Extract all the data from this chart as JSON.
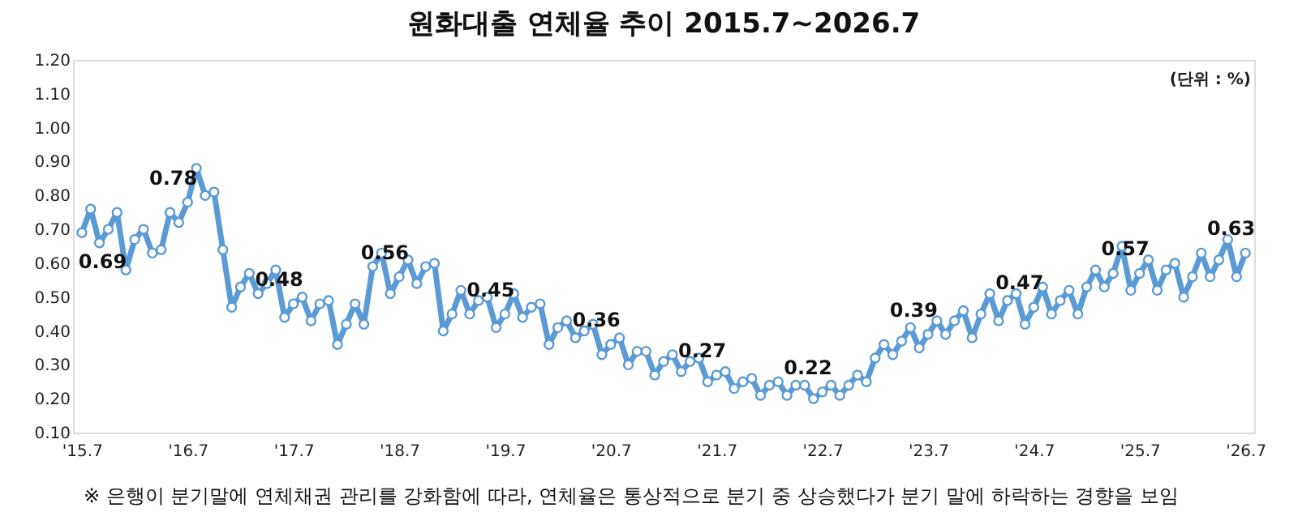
{
  "chart_data": {
    "type": "line",
    "title": "원화대출 연체율 추이 2015.7~2026.7",
    "annotations": [
      "(단위 : %)",
      "※ 은행이 분기말에 연체채권 관리를 강화함에 따라, 연체율은 통상적으로 분기 중 상승했다가 분기 말에 하락하는 경향을 보임"
    ],
    "categories": [
      "'15.7",
      null,
      null,
      null,
      null,
      null,
      null,
      null,
      null,
      null,
      null,
      null,
      "'16.7",
      null,
      null,
      null,
      null,
      null,
      null,
      null,
      null,
      null,
      null,
      null,
      "'17.7",
      null,
      null,
      null,
      null,
      null,
      null,
      null,
      null,
      null,
      null,
      null,
      "'18.7",
      null,
      null,
      null,
      null,
      null,
      null,
      null,
      null,
      null,
      null,
      null,
      "'19.7",
      null,
      null,
      null,
      null,
      null,
      null,
      null,
      null,
      null,
      null,
      null,
      "'20.7",
      null,
      null,
      null,
      null,
      null,
      null,
      null,
      null,
      null,
      null,
      null,
      "'21.7",
      null,
      null,
      null,
      null,
      null,
      null,
      null,
      null,
      null,
      null,
      null,
      "'22.7",
      null,
      null,
      null,
      null,
      null,
      null,
      null,
      null,
      null,
      null,
      null,
      "'23.7",
      null,
      null,
      null,
      null,
      null,
      null,
      null,
      null,
      null,
      null,
      null,
      "'24.7",
      null,
      null,
      null,
      null,
      null,
      null,
      null,
      null,
      null,
      null,
      null,
      "'25.7",
      null,
      null,
      null,
      null,
      null,
      null,
      null,
      null,
      null,
      null,
      null,
      "'26.7"
    ],
    "series": [
      {
        "color": "#5b9bd5",
        "values": [
          0.69,
          0.76,
          0.66,
          0.7,
          0.75,
          0.58,
          0.67,
          0.7,
          0.63,
          0.64,
          0.75,
          0.72,
          0.78,
          0.88,
          0.8,
          0.81,
          0.64,
          0.47,
          0.53,
          0.57,
          0.51,
          0.54,
          0.58,
          0.44,
          0.48,
          0.5,
          0.43,
          0.48,
          0.49,
          0.36,
          0.42,
          0.48,
          0.42,
          0.59,
          0.63,
          0.51,
          0.56,
          0.61,
          0.54,
          0.59,
          0.6,
          0.4,
          0.45,
          0.52,
          0.45,
          0.49,
          0.5,
          0.41,
          0.45,
          0.51,
          0.44,
          0.47,
          0.48,
          0.36,
          0.41,
          0.43,
          0.38,
          0.4,
          0.42,
          0.33,
          0.36,
          0.38,
          0.3,
          0.34,
          0.34,
          0.27,
          0.31,
          0.33,
          0.28,
          0.31,
          0.32,
          0.25,
          0.27,
          0.28,
          0.23,
          0.25,
          0.26,
          0.21,
          0.24,
          0.25,
          0.21,
          0.24,
          0.24,
          0.2,
          0.22,
          0.24,
          0.21,
          0.24,
          0.27,
          0.25,
          0.32,
          0.36,
          0.33,
          0.37,
          0.41,
          0.35,
          0.39,
          0.43,
          0.39,
          0.43,
          0.46,
          0.38,
          0.45,
          0.51,
          0.43,
          0.49,
          0.51,
          0.42,
          0.47,
          0.53,
          0.45,
          0.49,
          0.52,
          0.45,
          0.53,
          0.58,
          0.53,
          0.57,
          0.65,
          0.52,
          0.57,
          0.61,
          0.52,
          0.58,
          0.6,
          0.5,
          0.56,
          0.63,
          0.56,
          0.61,
          0.67,
          0.56,
          0.63
        ]
      }
    ],
    "value_labels": [
      "0.69",
      null,
      null,
      null,
      null,
      null,
      null,
      null,
      null,
      null,
      null,
      null,
      "0.78",
      null,
      null,
      null,
      null,
      null,
      null,
      null,
      null,
      null,
      null,
      null,
      "0.48",
      null,
      null,
      null,
      null,
      null,
      null,
      null,
      null,
      null,
      null,
      null,
      "0.56",
      null,
      null,
      null,
      null,
      null,
      null,
      null,
      null,
      null,
      null,
      null,
      "0.45",
      null,
      null,
      null,
      null,
      null,
      null,
      null,
      null,
      null,
      null,
      null,
      "0.36",
      null,
      null,
      null,
      null,
      null,
      null,
      null,
      null,
      null,
      null,
      null,
      "0.27",
      null,
      null,
      null,
      null,
      null,
      null,
      null,
      null,
      null,
      null,
      null,
      "0.22",
      null,
      null,
      null,
      null,
      null,
      null,
      null,
      null,
      null,
      null,
      null,
      "0.39",
      null,
      null,
      null,
      null,
      null,
      null,
      null,
      null,
      null,
      null,
      null,
      "0.47",
      null,
      null,
      null,
      null,
      null,
      null,
      null,
      null,
      null,
      null,
      null,
      "0.57",
      null,
      null,
      null,
      null,
      null,
      null,
      null,
      null,
      null,
      null,
      null,
      "0.63"
    ],
    "ylim": [
      0.1,
      1.2
    ],
    "yticks": [
      {
        "value": 0.1,
        "label": "0.10"
      },
      {
        "value": 0.2,
        "label": "0.20"
      },
      {
        "value": 0.3,
        "label": "0.30"
      },
      {
        "value": 0.4,
        "label": "0.40"
      },
      {
        "value": 0.5,
        "label": "0.50"
      },
      {
        "value": 0.6,
        "label": "0.60"
      },
      {
        "value": 0.7,
        "label": "0.70"
      },
      {
        "value": 0.8,
        "label": "0.80"
      },
      {
        "value": 0.9,
        "label": "0.90"
      },
      {
        "value": 1.0,
        "label": "1.00"
      },
      {
        "value": 1.1,
        "label": "1.10"
      },
      {
        "value": 1.2,
        "label": "1.20"
      }
    ],
    "grid": false,
    "legend": false,
    "marker": "circle",
    "line_style": "solid"
  }
}
